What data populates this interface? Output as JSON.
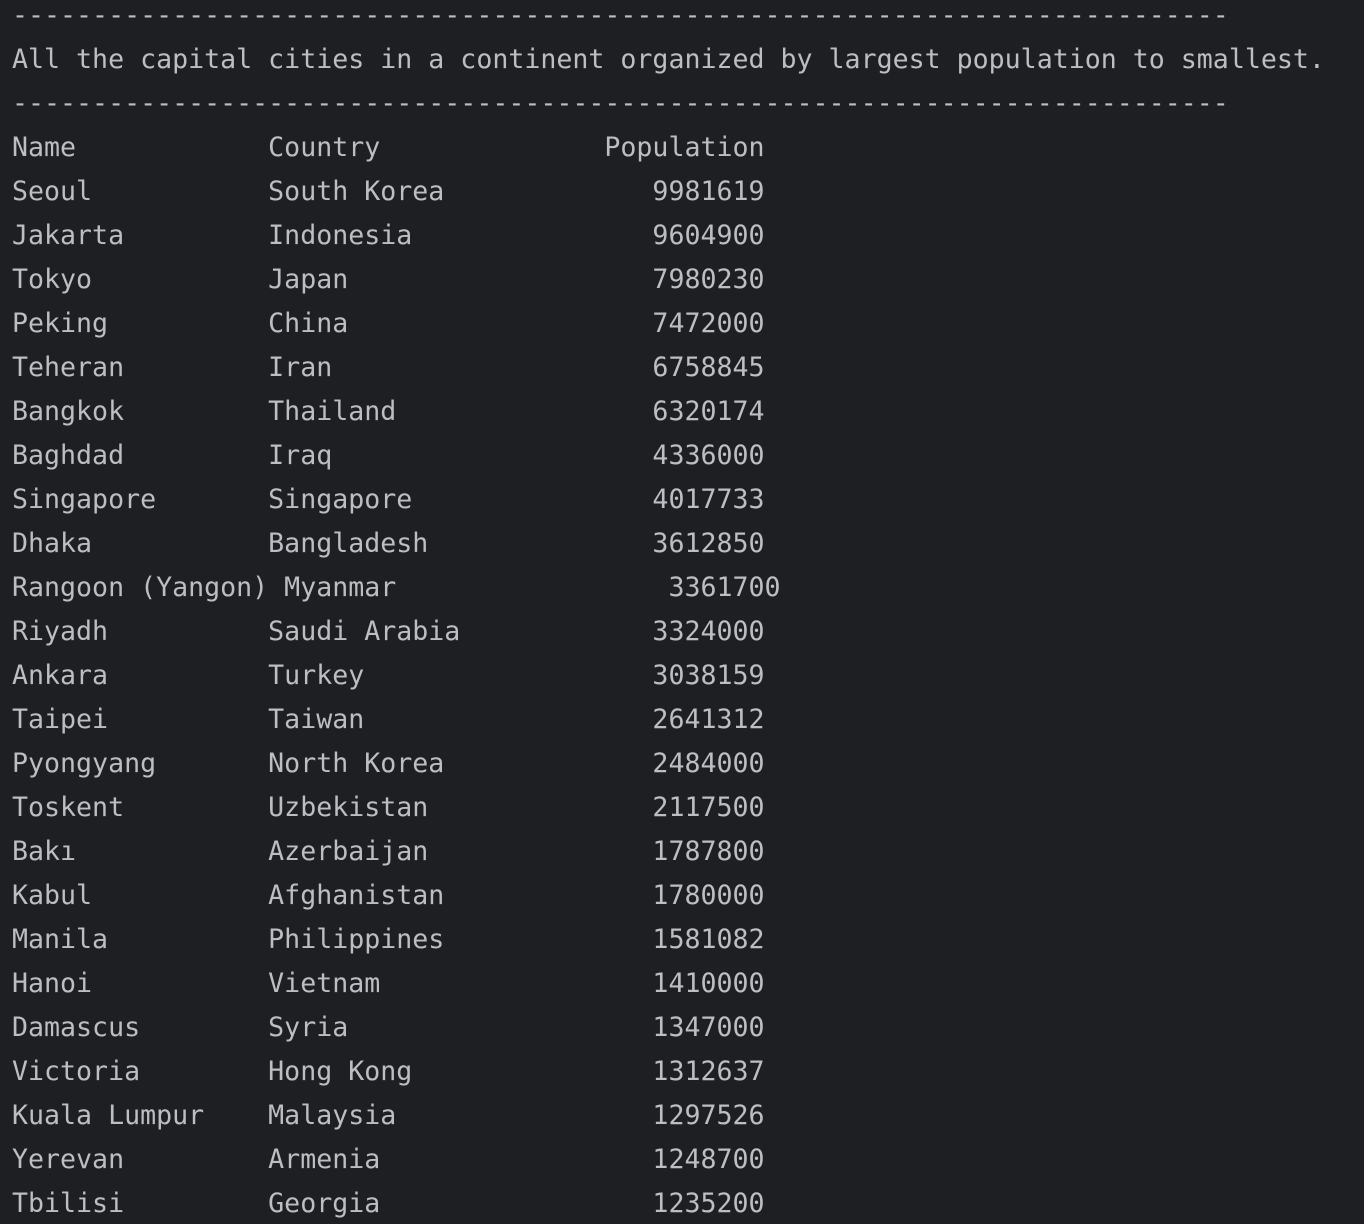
{
  "console": {
    "separator_top": "----------------------------------------------------------------------------",
    "description": "All the capital cities in a continent organized by largest population to smallest.",
    "separator_bottom": "----------------------------------------------------------------------------",
    "lines": [
      "Name            Country              Population",
      "Seoul           South Korea             9981619",
      "Jakarta         Indonesia               9604900",
      "Tokyo           Japan                   7980230",
      "Peking          China                   7472000",
      "Teheran         Iran                    6758845",
      "Bangkok         Thailand                6320174",
      "Baghdad         Iraq                    4336000",
      "Singapore       Singapore               4017733",
      "Dhaka           Bangladesh              3612850",
      "Rangoon (Yangon) Myanmar                 3361700",
      "Riyadh          Saudi Arabia            3324000",
      "Ankara          Turkey                  3038159",
      "Taipei          Taiwan                  2641312",
      "Pyongyang       North Korea             2484000",
      "Toskent         Uzbekistan              2117500",
      "Bakı            Azerbaijan              1787800",
      "Kabul           Afghanistan             1780000",
      "Manila          Philippines             1581082",
      "Hanoi           Vietnam                 1410000",
      "Damascus        Syria                   1347000",
      "Victoria        Hong Kong               1312637",
      "Kuala Lumpur    Malaysia                1297526",
      "Yerevan         Armenia                 1248700",
      "Tbilisi         Georgia                 1235200"
    ]
  }
}
